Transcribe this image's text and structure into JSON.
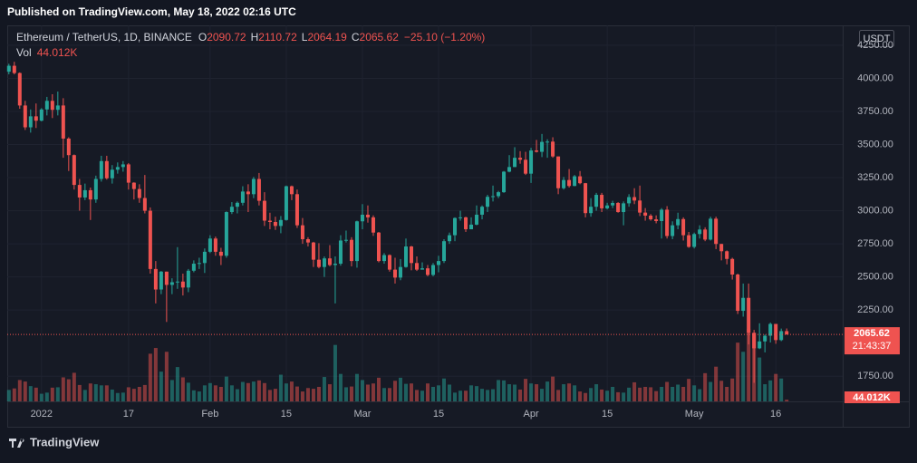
{
  "header": {
    "published": "Published on TradingView.com, May 18, 2022 02:16 UTC",
    "symbol": "Ethereum / TetherUS, 1D, BINANCE",
    "o": "O",
    "h": "H",
    "l": "L",
    "c": "C",
    "change": "−25.10 (−1.20%)",
    "vol": "Vol",
    "currency": "USDT",
    "countdown": "21:43:37",
    "brand": "TradingView"
  },
  "chart_data": {
    "type": "candlestick",
    "up_color": "#26a69a",
    "down_color": "#ef5350",
    "grid": true,
    "xlim": [
      -0.3,
      153.3
    ],
    "ylim": [
      1560,
      4400
    ],
    "yticks": [
      {
        "value": 1750,
        "label": "1750.00"
      },
      {
        "value": 2250,
        "label": "2250.00"
      },
      {
        "value": 2500,
        "label": "2500.00"
      },
      {
        "value": 2750,
        "label": "2750.00"
      },
      {
        "value": 3000,
        "label": "3000.00"
      },
      {
        "value": 3250,
        "label": "3250.00"
      },
      {
        "value": 3500,
        "label": "3500.00"
      },
      {
        "value": 3750,
        "label": "3750.00"
      },
      {
        "value": 4000,
        "label": "4000.00"
      },
      {
        "value": 4250,
        "label": "4250.00"
      }
    ],
    "xticks": [
      {
        "value": 6,
        "label": "2022"
      },
      {
        "value": 22,
        "label": "17"
      },
      {
        "value": 37,
        "label": "Feb"
      },
      {
        "value": 51,
        "label": "15"
      },
      {
        "value": 65,
        "label": "Mar"
      },
      {
        "value": 79,
        "label": "15"
      },
      {
        "value": 96,
        "label": "Apr"
      },
      {
        "value": 110,
        "label": "15"
      },
      {
        "value": 126,
        "label": "May"
      },
      {
        "value": 141,
        "label": "16"
      }
    ],
    "x": [
      0,
      1,
      2,
      3,
      4,
      5,
      6,
      7,
      8,
      9,
      10,
      11,
      12,
      13,
      14,
      15,
      16,
      17,
      18,
      19,
      20,
      21,
      22,
      23,
      24,
      25,
      26,
      27,
      28,
      29,
      30,
      31,
      32,
      33,
      34,
      35,
      36,
      37,
      38,
      39,
      40,
      41,
      42,
      43,
      44,
      45,
      46,
      47,
      48,
      49,
      50,
      51,
      52,
      53,
      54,
      55,
      56,
      57,
      58,
      59,
      60,
      61,
      62,
      63,
      64,
      65,
      66,
      67,
      68,
      69,
      70,
      71,
      72,
      73,
      74,
      75,
      76,
      77,
      78,
      79,
      80,
      81,
      82,
      83,
      84,
      85,
      86,
      87,
      88,
      89,
      90,
      91,
      92,
      93,
      94,
      95,
      96,
      97,
      98,
      99,
      100,
      101,
      102,
      103,
      104,
      105,
      106,
      107,
      108,
      109,
      110,
      111,
      112,
      113,
      114,
      115,
      116,
      117,
      118,
      119,
      120,
      121,
      122,
      123,
      124,
      125,
      126,
      127,
      128,
      129,
      130,
      131,
      132,
      133,
      134,
      135,
      136,
      137,
      138,
      139,
      140,
      141,
      142,
      143
    ],
    "open": [
      4050,
      4095,
      4040,
      3795,
      3630,
      3713,
      3680,
      3765,
      3830,
      3762,
      3795,
      3545,
      3420,
      3195,
      3100,
      3155,
      3085,
      3240,
      3375,
      3245,
      3310,
      3330,
      3350,
      3212,
      3164,
      3096,
      3000,
      2560,
      2405,
      2540,
      2440,
      2460,
      2465,
      2420,
      2547,
      2600,
      2605,
      2690,
      2790,
      2690,
      2660,
      2990,
      3030,
      3060,
      3145,
      3125,
      3240,
      3075,
      2925,
      2915,
      2885,
      2930,
      3185,
      3125,
      2890,
      2785,
      2760,
      2630,
      2575,
      2640,
      2590,
      2600,
      2775,
      2780,
      2620,
      2920,
      2970,
      2950,
      2835,
      2620,
      2665,
      2555,
      2495,
      2575,
      2730,
      2605,
      2555,
      2565,
      2515,
      2590,
      2620,
      2770,
      2815,
      2945,
      2950,
      2860,
      2895,
      2970,
      3030,
      3105,
      3110,
      3140,
      3295,
      3330,
      3400,
      3385,
      3280,
      3455,
      3445,
      3520,
      3522,
      3410,
      3170,
      3232,
      3187,
      3260,
      3208,
      2982,
      3030,
      3120,
      3018,
      3040,
      3059,
      2990,
      3056,
      3103,
      3077,
      2986,
      2963,
      2935,
      2922,
      3008,
      2809,
      2890,
      2937,
      2815,
      2727,
      2824,
      2858,
      2782,
      2940,
      2749,
      2694,
      2636,
      2518,
      2244,
      2342,
      2078,
      1961,
      2013,
      2056,
      2145,
      2023,
      2090.72
    ],
    "high": [
      4110,
      4125,
      4045,
      3830,
      3765,
      3810,
      3775,
      3860,
      3880,
      3900,
      3850,
      3555,
      3425,
      3240,
      3205,
      3175,
      3265,
      3415,
      3415,
      3345,
      3365,
      3375,
      3360,
      3215,
      3200,
      3270,
      3025,
      2620,
      2545,
      2540,
      2490,
      2725,
      2525,
      2560,
      2625,
      2645,
      2715,
      2815,
      2805,
      2720,
      2995,
      3065,
      3070,
      3185,
      3200,
      3255,
      3285,
      3140,
      2985,
      2955,
      2960,
      3190,
      3190,
      3160,
      2945,
      2800,
      2765,
      2755,
      2655,
      2740,
      2655,
      2815,
      2850,
      2800,
      2925,
      3050,
      3040,
      2965,
      2840,
      2680,
      2670,
      2645,
      2635,
      2790,
      2735,
      2655,
      2610,
      2590,
      2605,
      2660,
      2785,
      2835,
      2950,
      3000,
      2955,
      2950,
      3040,
      3040,
      3120,
      3190,
      3150,
      3300,
      3420,
      3480,
      3450,
      3445,
      3475,
      3535,
      3580,
      3540,
      3555,
      3410,
      3255,
      3315,
      3270,
      3300,
      3210,
      3095,
      3135,
      3135,
      3060,
      3075,
      3065,
      3070,
      3125,
      3170,
      3190,
      3020,
      2975,
      2965,
      3020,
      3035,
      2920,
      2985,
      2950,
      2840,
      2835,
      2890,
      2875,
      2955,
      2955,
      2750,
      2700,
      2645,
      2525,
      2450,
      2450,
      2100,
      2150,
      2065,
      2155,
      2145,
      2110,
      2110.72
    ],
    "low": [
      4030,
      4030,
      3770,
      3610,
      3590,
      3625,
      3675,
      3720,
      3700,
      3720,
      3400,
      3300,
      3160,
      3000,
      3080,
      2930,
      3060,
      3220,
      3235,
      3205,
      3280,
      3295,
      3160,
      3085,
      3060,
      2980,
      2525,
      2300,
      2370,
      2160,
      2370,
      2410,
      2360,
      2385,
      2535,
      2560,
      2530,
      2680,
      2660,
      2590,
      2645,
      2975,
      2980,
      3040,
      2990,
      3095,
      3040,
      2885,
      2860,
      2855,
      2830,
      2925,
      3080,
      2870,
      2750,
      2730,
      2575,
      2565,
      2500,
      2580,
      2300,
      2585,
      2760,
      2580,
      2570,
      2860,
      2910,
      2810,
      2610,
      2600,
      2540,
      2450,
      2475,
      2570,
      2550,
      2545,
      2555,
      2505,
      2505,
      2535,
      2605,
      2750,
      2770,
      2925,
      2840,
      2860,
      2890,
      2935,
      2990,
      3070,
      3095,
      3135,
      3290,
      3330,
      3355,
      3270,
      3210,
      3440,
      3405,
      3400,
      3400,
      3125,
      3160,
      3175,
      3185,
      3200,
      2950,
      2955,
      3000,
      2990,
      3010,
      3020,
      2985,
      2890,
      3030,
      3050,
      2960,
      2925,
      2925,
      2905,
      2790,
      2790,
      2785,
      2860,
      2775,
      2720,
      2715,
      2790,
      2770,
      2775,
      2710,
      2625,
      2595,
      2480,
      2220,
      2200,
      1990,
      1700,
      1955,
      1930,
      2005,
      1995,
      2015,
      2064.19
    ],
    "close": [
      4095,
      4040,
      3795,
      3630,
      3713,
      3680,
      3765,
      3830,
      3762,
      3795,
      3545,
      3420,
      3195,
      3100,
      3155,
      3085,
      3240,
      3375,
      3245,
      3310,
      3330,
      3350,
      3212,
      3164,
      3096,
      3000,
      2560,
      2405,
      2540,
      2440,
      2460,
      2465,
      2420,
      2547,
      2600,
      2605,
      2690,
      2790,
      2690,
      2660,
      2990,
      3030,
      3060,
      3145,
      3125,
      3240,
      3075,
      2925,
      2915,
      2885,
      2930,
      3185,
      3125,
      2890,
      2785,
      2760,
      2630,
      2575,
      2640,
      2590,
      2600,
      2775,
      2780,
      2620,
      2920,
      2970,
      2950,
      2835,
      2620,
      2665,
      2555,
      2495,
      2575,
      2730,
      2605,
      2555,
      2565,
      2515,
      2590,
      2620,
      2770,
      2815,
      2945,
      2950,
      2860,
      2895,
      2970,
      3030,
      3105,
      3110,
      3140,
      3295,
      3330,
      3400,
      3385,
      3280,
      3455,
      3445,
      3520,
      3522,
      3410,
      3170,
      3232,
      3187,
      3260,
      3208,
      2982,
      3030,
      3120,
      3018,
      3040,
      3059,
      2990,
      3056,
      3103,
      3077,
      2986,
      2963,
      2935,
      2922,
      3008,
      2809,
      2890,
      2937,
      2815,
      2727,
      2824,
      2858,
      2782,
      2940,
      2749,
      2694,
      2636,
      2518,
      2244,
      2342,
      2078,
      1961,
      2013,
      2056,
      2145,
      2023,
      2090.72,
      2065.62
    ],
    "volume": [
      300000,
      340000,
      560000,
      520000,
      400000,
      360000,
      200000,
      230000,
      360000,
      370000,
      630000,
      580000,
      750000,
      430000,
      300000,
      470000,
      450000,
      420000,
      420000,
      310000,
      220000,
      230000,
      370000,
      330000,
      380000,
      430000,
      1250000,
      1400000,
      780000,
      1300000,
      560000,
      900000,
      630000,
      490000,
      290000,
      260000,
      420000,
      480000,
      420000,
      380000,
      650000,
      420000,
      320000,
      510000,
      480000,
      520000,
      550000,
      480000,
      300000,
      330000,
      700000,
      470000,
      520000,
      390000,
      260000,
      350000,
      330000,
      380000,
      640000,
      450000,
      1480000,
      720000,
      370000,
      390000,
      720000,
      560000,
      440000,
      470000,
      620000,
      350000,
      350000,
      540000,
      620000,
      460000,
      470000,
      300000,
      280000,
      470000,
      380000,
      420000,
      600000,
      440000,
      230000,
      280000,
      280000,
      420000,
      400000,
      330000,
      300000,
      320000,
      560000,
      550000,
      450000,
      440000,
      310000,
      590000,
      470000,
      450000,
      330000,
      520000,
      650000,
      300000,
      450000,
      470000,
      420000,
      260000,
      220000,
      350000,
      450000,
      310000,
      280000,
      380000,
      240000,
      230000,
      360000,
      500000,
      360000,
      380000,
      370000,
      270000,
      380000,
      510000,
      380000,
      440000,
      380000,
      590000,
      420000,
      320000,
      740000,
      510000,
      910000,
      540000,
      380000,
      600000,
      1540000,
      1300000,
      1900000,
      1780000,
      1150000,
      450000,
      550000,
      720000,
      600000,
      44012
    ],
    "volume_last_label": "44.012K"
  }
}
